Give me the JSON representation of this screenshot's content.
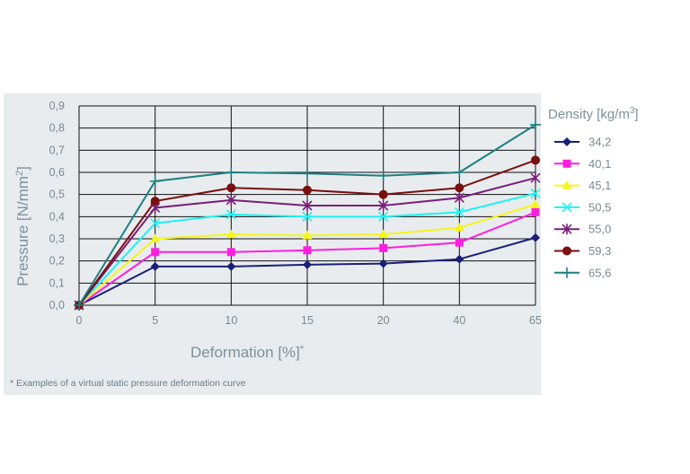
{
  "chart_data": {
    "type": "line",
    "categories": [
      "0",
      "5",
      "10",
      "15",
      "20",
      "40",
      "65"
    ],
    "xlabel": "Deformation [%]",
    "xlabel_sup": "*",
    "ylabel": "Pressure [N/mm",
    "ylabel_sup": "2",
    "ylabel_end": "]",
    "ylim": [
      0,
      0.9
    ],
    "yticks": [
      "0,0",
      "0,1",
      "0,2",
      "0,3",
      "0,4",
      "0,5",
      "0,6",
      "0,7",
      "0,8",
      "0,9"
    ],
    "grid": true,
    "legend_position": "right",
    "legend_title": "Density [kg/m",
    "legend_title_sup": "3",
    "legend_title_end": "]",
    "series": [
      {
        "name": "34,2",
        "color": "#1a1f7a",
        "marker": "diamond",
        "values": [
          0,
          0.175,
          0.175,
          0.183,
          0.188,
          0.208,
          0.305
        ]
      },
      {
        "name": "40,1",
        "color": "#ff1ee0",
        "marker": "square",
        "values": [
          0,
          0.24,
          0.24,
          0.248,
          0.258,
          0.283,
          0.42
        ]
      },
      {
        "name": "45,1",
        "color": "#f5f51a",
        "marker": "triangle",
        "values": [
          0,
          0.3,
          0.32,
          0.315,
          0.32,
          0.35,
          0.455
        ]
      },
      {
        "name": "50,5",
        "color": "#1ef2f2",
        "marker": "x",
        "values": [
          0,
          0.37,
          0.41,
          0.4,
          0.4,
          0.42,
          0.505
        ]
      },
      {
        "name": "55,0",
        "color": "#7a1e78",
        "marker": "star",
        "values": [
          0,
          0.44,
          0.475,
          0.45,
          0.45,
          0.485,
          0.575
        ]
      },
      {
        "name": "59,3",
        "color": "#7a0f0f",
        "marker": "circle",
        "values": [
          0,
          0.47,
          0.53,
          0.52,
          0.5,
          0.53,
          0.655
        ]
      },
      {
        "name": "65,6",
        "color": "#1e7f80",
        "marker": "plus",
        "values": [
          0,
          0.56,
          0.6,
          0.595,
          0.585,
          0.6,
          0.815
        ]
      }
    ]
  },
  "footnote": "* Examples of a virtual static pressure deformation curve"
}
